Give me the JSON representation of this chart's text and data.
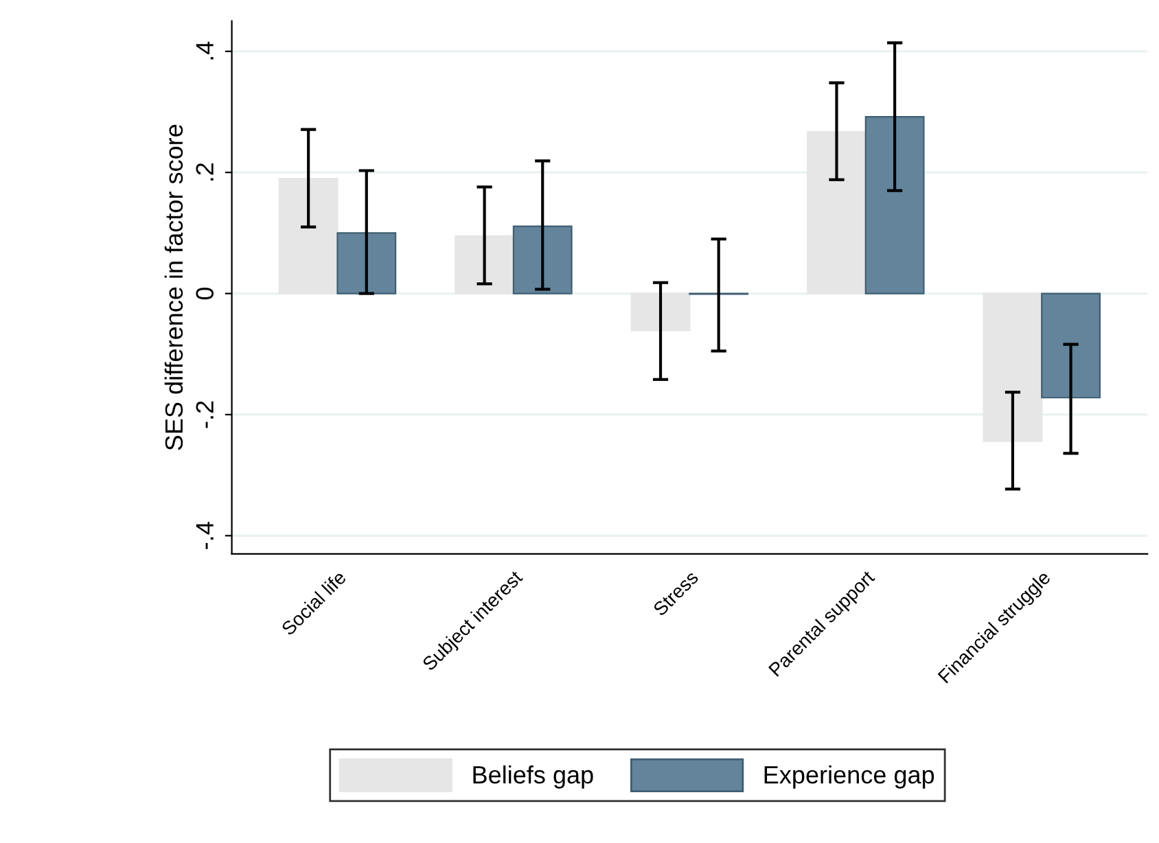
{
  "chart_data": {
    "type": "bar",
    "ylabel": "SES difference in factor score",
    "categories": [
      "Social life",
      "Subject interest",
      "Stress",
      "Parental support",
      "Financial struggle"
    ],
    "series": [
      {
        "name": "Beliefs gap",
        "color": "#e6e6e6",
        "values": [
          0.19,
          0.095,
          -0.061,
          0.267,
          -0.244
        ],
        "errors": [
          [
            0.11,
            0.271
          ],
          [
            0.016,
            0.176
          ],
          [
            -0.142,
            0.018
          ],
          [
            0.188,
            0.348
          ],
          [
            -0.323,
            -0.163
          ]
        ]
      },
      {
        "name": "Experience gap",
        "color": "#63849a",
        "values": [
          0.1,
          0.111,
          -0.001,
          0.292,
          -0.172
        ],
        "errors": [
          [
            0.0,
            0.203
          ],
          [
            0.007,
            0.219
          ],
          [
            -0.095,
            0.09
          ],
          [
            0.17,
            0.414
          ],
          [
            -0.264,
            -0.084
          ]
        ]
      }
    ],
    "ylim": [
      -0.43,
      0.45
    ],
    "yticks": [
      {
        "value": -0.4,
        "label": "-.4"
      },
      {
        "value": -0.2,
        "label": "-.2"
      },
      0,
      {
        "value": 0.2,
        "label": ".2"
      },
      {
        "value": 0.4,
        "label": ".4"
      }
    ],
    "grid": "y",
    "legend": "bottom"
  }
}
